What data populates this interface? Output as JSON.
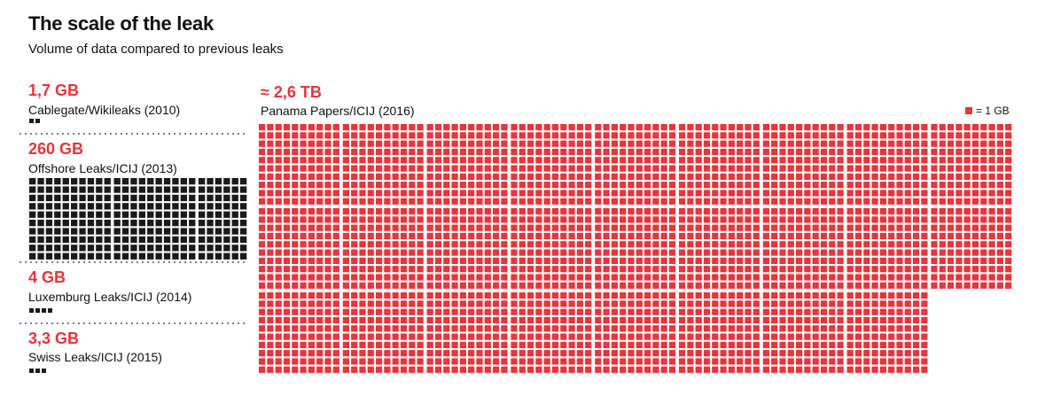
{
  "title": "The scale of the leak",
  "subtitle": "Volume of data compared to previous leaks",
  "legend": {
    "label": "= 1 GB",
    "color": "#e8343a"
  },
  "colors": {
    "highlight": "#e8343a",
    "previous": "#1a1a1a",
    "divider": "#555555"
  },
  "chart_data": {
    "type": "waffle",
    "unit": "1 GB",
    "series": [
      {
        "name": "Cablegate/Wikileaks (2010)",
        "value_label": "1,7 GB",
        "value_gb": 1.7,
        "color": "#1a1a1a"
      },
      {
        "name": "Offshore Leaks/ICIJ (2013)",
        "value_label": "260 GB",
        "value_gb": 260,
        "color": "#1a1a1a"
      },
      {
        "name": "Luxemburg Leaks/ICIJ (2014)",
        "value_label": "4 GB",
        "value_gb": 4,
        "color": "#1a1a1a"
      },
      {
        "name": "Swiss Leaks/ICIJ (2015)",
        "value_label": "3,3 GB",
        "value_gb": 3.3,
        "color": "#1a1a1a"
      },
      {
        "name": "Panama Papers/ICIJ (2016)",
        "value_label": "≈ 2,6 TB",
        "value_gb": 2600,
        "color": "#e8343a"
      }
    ]
  }
}
